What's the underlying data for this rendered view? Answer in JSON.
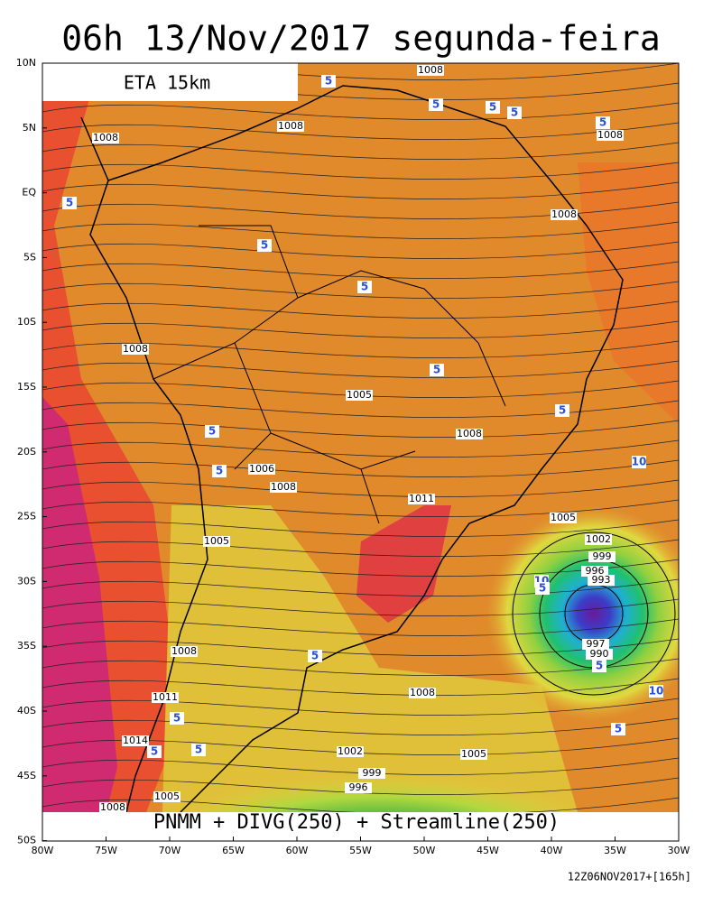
{
  "header": {
    "title": "06h 13/Nov/2017 segunda-feira",
    "model": "ETA 15km"
  },
  "map": {
    "caption": "PNMM + DIVG(250) + Streamline(250)",
    "lat_labels": [
      "10N",
      "5N",
      "EQ",
      "5S",
      "10S",
      "15S",
      "20S",
      "25S",
      "30S",
      "35S",
      "40S",
      "45S",
      "50S"
    ],
    "lon_labels": [
      "80W",
      "75W",
      "70W",
      "65W",
      "60W",
      "55W",
      "50W",
      "45W",
      "40W",
      "35W",
      "30W"
    ],
    "pressure_labels": [
      "1008",
      "1008",
      "1008",
      "1008",
      "1008",
      "1008",
      "1005",
      "1008",
      "1006",
      "1008",
      "1011",
      "1005",
      "1002",
      "999",
      "996",
      "993",
      "1005",
      "1008",
      "997",
      "990",
      "1011",
      "1008",
      "1014",
      "1002",
      "1005",
      "999",
      "996",
      "1005",
      "1008"
    ],
    "divergence_labels": [
      "5",
      "5",
      "5",
      "5",
      "5",
      "5",
      "5",
      "5",
      "5",
      "5",
      "5",
      "10",
      "5",
      "10",
      "5",
      "10",
      "5",
      "5",
      "5",
      "5",
      "5",
      "5"
    ]
  },
  "footer": {
    "run": "12Z06NOV2017+[165h]"
  }
}
